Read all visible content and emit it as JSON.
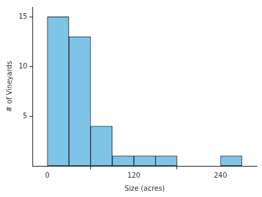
{
  "chart_data": {
    "type": "histogram",
    "bins": [
      0,
      30,
      60,
      90,
      120,
      150,
      180,
      210,
      240,
      270
    ],
    "values": [
      15,
      13,
      4,
      1,
      1,
      1,
      0,
      0,
      1
    ],
    "color": "#7ec4e6",
    "x_label": "Size (acres)",
    "y_label": "# of Vineyards",
    "xlim": [
      -20,
      290
    ],
    "xticks": [
      0,
      120,
      240
    ],
    "ylim": [
      0,
      16
    ],
    "yticks": [
      5,
      10,
      15
    ],
    "grid": false
  }
}
